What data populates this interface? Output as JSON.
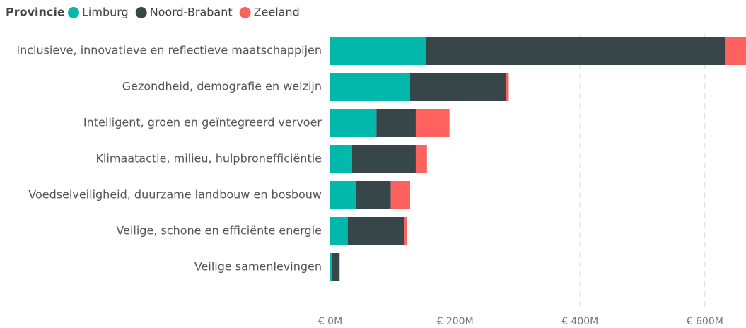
{
  "chart_data": {
    "type": "stacked_bar_horizontal",
    "legend_title": "Provincie",
    "categories": [
      "Inclusieve, innovatieve en reflectieve maatschappijen",
      "Gezondheid, demografie en welzijn",
      "Intelligent, groen en geïntegreerd vervoer",
      "Klimaatactie, milieu, hulpbronefficiëntie",
      "Voedselveiligheid, duurzame landbouw en bosbouw",
      "Veilige, schone en efficiënte energie",
      "Veilige samenlevingen"
    ],
    "series": [
      {
        "name": "Limburg",
        "color": "#01B8AA",
        "values": [
          153,
          128,
          74,
          35,
          41,
          28,
          2
        ]
      },
      {
        "name": "Noord-Brabant",
        "color": "#374649",
        "values": [
          480,
          154,
          63,
          102,
          56,
          90,
          13
        ]
      },
      {
        "name": "Zeeland",
        "color": "#FD625E",
        "values": [
          33,
          4,
          54,
          18,
          31,
          5,
          0
        ]
      }
    ],
    "xlim": [
      0,
      666
    ],
    "xticks": [
      {
        "value": 0,
        "label": "€ 0M"
      },
      {
        "value": 200,
        "label": "€ 200M"
      },
      {
        "value": 400,
        "label": "€ 400M"
      },
      {
        "value": 600,
        "label": "€ 600M"
      }
    ],
    "grid": true
  }
}
